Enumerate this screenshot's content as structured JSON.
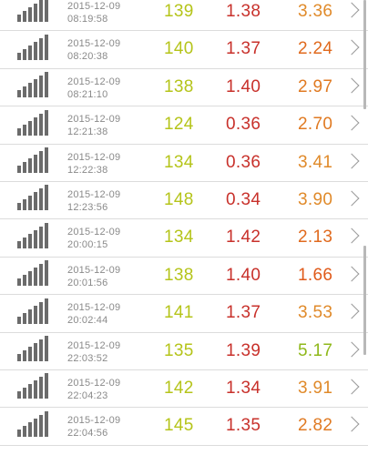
{
  "colors": {
    "green": "#b5c41a",
    "red": "#c8312b",
    "orange": "#e08a2a",
    "lime": "#8fb81a",
    "gray_text": "#8a8a8a",
    "bar_gray": "#6b6b6b"
  },
  "icons": {
    "signal": "signal-bars-icon",
    "chevron": "chevron-right-icon"
  },
  "rows": [
    {
      "date": "2015-12-09",
      "time": "08:19:58",
      "v1": "139",
      "v2": "1.38",
      "v3": "3.36",
      "v3_color": "#e08a2a"
    },
    {
      "date": "2015-12-09",
      "time": "08:20:38",
      "v1": "140",
      "v2": "1.37",
      "v3": "2.24",
      "v3_color": "#e06a1e"
    },
    {
      "date": "2015-12-09",
      "time": "08:21:10",
      "v1": "138",
      "v2": "1.40",
      "v3": "2.97",
      "v3_color": "#e07a22"
    },
    {
      "date": "2015-12-09",
      "time": "12:21:38",
      "v1": "124",
      "v2": "0.36",
      "v3": "2.70",
      "v3_color": "#e07a22"
    },
    {
      "date": "2015-12-09",
      "time": "12:22:38",
      "v1": "134",
      "v2": "0.36",
      "v3": "3.41",
      "v3_color": "#e08a2a"
    },
    {
      "date": "2015-12-09",
      "time": "12:23:56",
      "v1": "148",
      "v2": "0.34",
      "v3": "3.90",
      "v3_color": "#e08a2a"
    },
    {
      "date": "2015-12-09",
      "time": "20:00:15",
      "v1": "134",
      "v2": "1.42",
      "v3": "2.13",
      "v3_color": "#e06a1e"
    },
    {
      "date": "2015-12-09",
      "time": "20:01:56",
      "v1": "138",
      "v2": "1.40",
      "v3": "1.66",
      "v3_color": "#e05a1a"
    },
    {
      "date": "2015-12-09",
      "time": "20:02:44",
      "v1": "141",
      "v2": "1.37",
      "v3": "3.53",
      "v3_color": "#e08a2a"
    },
    {
      "date": "2015-12-09",
      "time": "22:03:52",
      "v1": "135",
      "v2": "1.39",
      "v3": "5.17",
      "v3_color": "#8fb81a"
    },
    {
      "date": "2015-12-09",
      "time": "22:04:23",
      "v1": "142",
      "v2": "1.34",
      "v3": "3.91",
      "v3_color": "#e08a2a"
    },
    {
      "date": "2015-12-09",
      "time": "22:04:56",
      "v1": "145",
      "v2": "1.35",
      "v3": "2.82",
      "v3_color": "#e07a22"
    }
  ]
}
